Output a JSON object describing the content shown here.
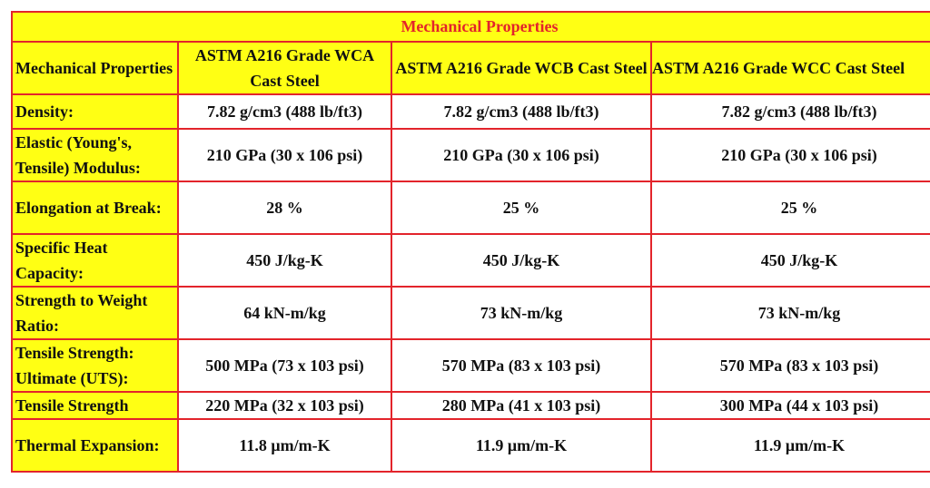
{
  "table": {
    "title": "Mechanical Properties",
    "header": [
      "Mechanical Properties",
      "ASTM A216 Grade WCA Cast Steel",
      "ASTM A216 Grade WCB Cast Steel",
      "ASTM A216 Grade WCC Cast Steel"
    ],
    "rows": [
      [
        "Density:",
        "7.82 g/cm3 (488 lb/ft3)",
        "7.82 g/cm3 (488 lb/ft3)",
        "7.82 g/cm3 (488 lb/ft3)"
      ],
      [
        "Elastic (Young's, Tensile) Modulus:",
        "210 GPa (30 x 106 psi)",
        "210 GPa (30 x 106 psi)",
        "210 GPa (30 x 106 psi)"
      ],
      [
        "Elongation at Break:",
        "28 %",
        "25 %",
        "25 %"
      ],
      [
        "Specific Heat Capacity:",
        "450 J/kg-K",
        "450 J/kg-K",
        "450 J/kg-K"
      ],
      [
        "Strength to Weight Ratio:",
        "64 kN-m/kg",
        "73 kN-m/kg",
        "73 kN-m/kg"
      ],
      [
        "Tensile Strength: Ultimate (UTS):",
        "500 MPa (73 x 103 psi)",
        "570 MPa (83 x 103 psi)",
        "570 MPa (83 x 103 psi)"
      ],
      [
        "Tensile Strength",
        "220 MPa (32 x 103 psi)",
        "280 MPa (41 x 103 psi)",
        "300 MPa (44 x 103 psi)"
      ],
      [
        "Thermal Expansion:",
        "11.8 μm/m-K",
        "11.9 μm/m-K",
        "11.9 μm/m-K"
      ]
    ]
  }
}
